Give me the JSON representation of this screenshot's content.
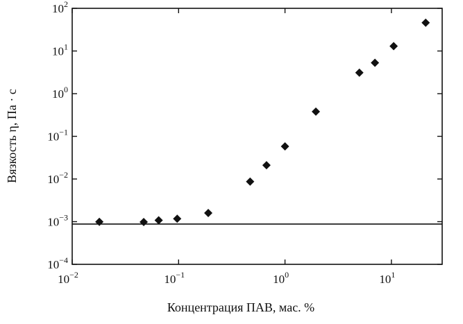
{
  "chart_data": {
    "type": "scatter",
    "title": "",
    "xlabel": "Концентрация ПАВ, мас. %",
    "ylabel": "Вязкость η, Па · с",
    "x_scale": "log",
    "y_scale": "log",
    "xlim": [
      0.01,
      30
    ],
    "ylim": [
      0.0001,
      100
    ],
    "x_ticks": [
      {
        "value": 0.01,
        "base": "10",
        "exp": "−2"
      },
      {
        "value": 0.1,
        "base": "10",
        "exp": "−1"
      },
      {
        "value": 1,
        "base": "10",
        "exp": "0"
      },
      {
        "value": 10,
        "base": "10",
        "exp": "1"
      }
    ],
    "y_ticks": [
      {
        "value": 0.0001,
        "base": "10",
        "exp": "−4"
      },
      {
        "value": 0.001,
        "base": "10",
        "exp": "−3"
      },
      {
        "value": 0.01,
        "base": "10",
        "exp": "−2"
      },
      {
        "value": 0.1,
        "base": "10",
        "exp": "−1"
      },
      {
        "value": 1,
        "base": "10",
        "exp": "0"
      },
      {
        "value": 10,
        "base": "10",
        "exp": "1"
      },
      {
        "value": 100,
        "base": "10",
        "exp": "2"
      }
    ],
    "reference_line_y": 0.00088,
    "marker": "diamond",
    "marker_color": "#111111",
    "grid": false,
    "series": [
      {
        "points": [
          {
            "x": 0.018,
            "y": 0.00099
          },
          {
            "x": 0.047,
            "y": 0.00098
          },
          {
            "x": 0.065,
            "y": 0.00108
          },
          {
            "x": 0.097,
            "y": 0.00117
          },
          {
            "x": 0.19,
            "y": 0.0016
          },
          {
            "x": 0.47,
            "y": 0.0087
          },
          {
            "x": 0.67,
            "y": 0.021
          },
          {
            "x": 1.0,
            "y": 0.058
          },
          {
            "x": 1.95,
            "y": 0.38
          },
          {
            "x": 5.0,
            "y": 3.1
          },
          {
            "x": 7.0,
            "y": 5.3
          },
          {
            "x": 10.5,
            "y": 13
          },
          {
            "x": 21.0,
            "y": 46
          }
        ]
      }
    ]
  }
}
